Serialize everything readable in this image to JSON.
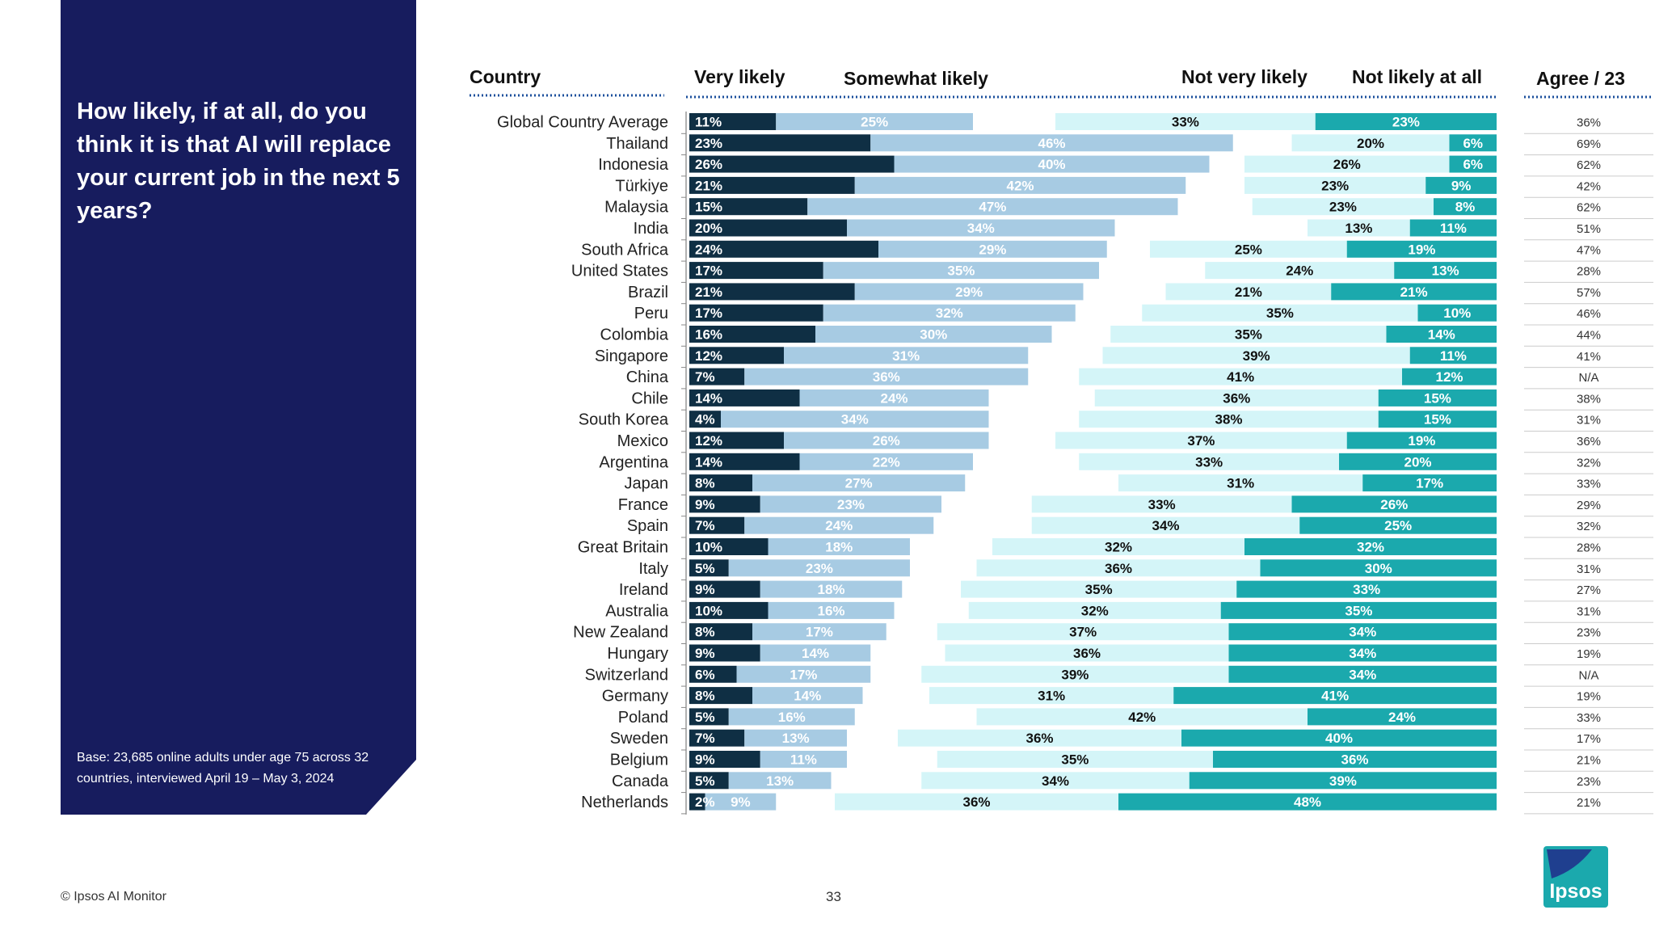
{
  "question": "How likely, if at all, do you think it is that AI will replace your current job in the next 5 years?",
  "base_note": "Base: 23,685 online adults under age 75 across 32 countries, interviewed April 19 – May 3, 2024",
  "footer": "© Ipsos AI Monitor",
  "page_number": "33",
  "logo_text": "Ipsos",
  "colors": {
    "panel": "#171c5e",
    "very_likely": "#0f2f44",
    "somewhat_likely": "#a7cbe3",
    "not_very_likely": "#d4f5f8",
    "not_likely_at_all": "#1ba9ad"
  },
  "chart_data": {
    "type": "bar",
    "subtype": "diverging-stacked-horizontal",
    "column_headers": {
      "country": "Country",
      "very_likely": "Very likely",
      "somewhat_likely": "Somewhat likely",
      "not_very_likely": "Not very likely",
      "not_likely_at_all": "Not likely at all",
      "agree23": "Agree / 23"
    },
    "unit": "%",
    "rows": [
      {
        "country": "Global Country Average",
        "very_likely": 11,
        "somewhat_likely": 25,
        "not_very_likely": 33,
        "not_likely_at_all": 23,
        "agree23": "36%"
      },
      {
        "country": "Thailand",
        "very_likely": 23,
        "somewhat_likely": 46,
        "not_very_likely": 20,
        "not_likely_at_all": 6,
        "agree23": "69%"
      },
      {
        "country": "Indonesia",
        "very_likely": 26,
        "somewhat_likely": 40,
        "not_very_likely": 26,
        "not_likely_at_all": 6,
        "agree23": "62%"
      },
      {
        "country": "Türkiye",
        "very_likely": 21,
        "somewhat_likely": 42,
        "not_very_likely": 23,
        "not_likely_at_all": 9,
        "agree23": "42%"
      },
      {
        "country": "Malaysia",
        "very_likely": 15,
        "somewhat_likely": 47,
        "not_very_likely": 23,
        "not_likely_at_all": 8,
        "agree23": "62%"
      },
      {
        "country": "India",
        "very_likely": 20,
        "somewhat_likely": 34,
        "not_very_likely": 13,
        "not_likely_at_all": 11,
        "agree23": "51%"
      },
      {
        "country": "South Africa",
        "very_likely": 24,
        "somewhat_likely": 29,
        "not_very_likely": 25,
        "not_likely_at_all": 19,
        "agree23": "47%"
      },
      {
        "country": "United States",
        "very_likely": 17,
        "somewhat_likely": 35,
        "not_very_likely": 24,
        "not_likely_at_all": 13,
        "agree23": "28%"
      },
      {
        "country": "Brazil",
        "very_likely": 21,
        "somewhat_likely": 29,
        "not_very_likely": 21,
        "not_likely_at_all": 21,
        "agree23": "57%"
      },
      {
        "country": "Peru",
        "very_likely": 17,
        "somewhat_likely": 32,
        "not_very_likely": 35,
        "not_likely_at_all": 10,
        "agree23": "46%"
      },
      {
        "country": "Colombia",
        "very_likely": 16,
        "somewhat_likely": 30,
        "not_very_likely": 35,
        "not_likely_at_all": 14,
        "agree23": "44%"
      },
      {
        "country": "Singapore",
        "very_likely": 12,
        "somewhat_likely": 31,
        "not_very_likely": 39,
        "not_likely_at_all": 11,
        "agree23": "41%"
      },
      {
        "country": "China",
        "very_likely": 7,
        "somewhat_likely": 36,
        "not_very_likely": 41,
        "not_likely_at_all": 12,
        "agree23": "N/A"
      },
      {
        "country": "Chile",
        "very_likely": 14,
        "somewhat_likely": 24,
        "not_very_likely": 36,
        "not_likely_at_all": 15,
        "agree23": "38%"
      },
      {
        "country": "South Korea",
        "very_likely": 4,
        "somewhat_likely": 34,
        "not_very_likely": 38,
        "not_likely_at_all": 15,
        "agree23": "31%"
      },
      {
        "country": "Mexico",
        "very_likely": 12,
        "somewhat_likely": 26,
        "not_very_likely": 37,
        "not_likely_at_all": 19,
        "agree23": "36%"
      },
      {
        "country": "Argentina",
        "very_likely": 14,
        "somewhat_likely": 22,
        "not_very_likely": 33,
        "not_likely_at_all": 20,
        "agree23": "32%"
      },
      {
        "country": "Japan",
        "very_likely": 8,
        "somewhat_likely": 27,
        "not_very_likely": 31,
        "not_likely_at_all": 17,
        "agree23": "33%"
      },
      {
        "country": "France",
        "very_likely": 9,
        "somewhat_likely": 23,
        "not_very_likely": 33,
        "not_likely_at_all": 26,
        "agree23": "29%"
      },
      {
        "country": "Spain",
        "very_likely": 7,
        "somewhat_likely": 24,
        "not_very_likely": 34,
        "not_likely_at_all": 25,
        "agree23": "32%"
      },
      {
        "country": "Great Britain",
        "very_likely": 10,
        "somewhat_likely": 18,
        "not_very_likely": 32,
        "not_likely_at_all": 32,
        "agree23": "28%"
      },
      {
        "country": "Italy",
        "very_likely": 5,
        "somewhat_likely": 23,
        "not_very_likely": 36,
        "not_likely_at_all": 30,
        "agree23": "31%"
      },
      {
        "country": "Ireland",
        "very_likely": 9,
        "somewhat_likely": 18,
        "not_very_likely": 35,
        "not_likely_at_all": 33,
        "agree23": "27%"
      },
      {
        "country": "Australia",
        "very_likely": 10,
        "somewhat_likely": 16,
        "not_very_likely": 32,
        "not_likely_at_all": 35,
        "agree23": "31%"
      },
      {
        "country": "New Zealand",
        "very_likely": 8,
        "somewhat_likely": 17,
        "not_very_likely": 37,
        "not_likely_at_all": 34,
        "agree23": "23%"
      },
      {
        "country": "Hungary",
        "very_likely": 9,
        "somewhat_likely": 14,
        "not_very_likely": 36,
        "not_likely_at_all": 34,
        "agree23": "19%"
      },
      {
        "country": "Switzerland",
        "very_likely": 6,
        "somewhat_likely": 17,
        "not_very_likely": 39,
        "not_likely_at_all": 34,
        "agree23": "N/A"
      },
      {
        "country": "Germany",
        "very_likely": 8,
        "somewhat_likely": 14,
        "not_very_likely": 31,
        "not_likely_at_all": 41,
        "agree23": "19%"
      },
      {
        "country": "Poland",
        "very_likely": 5,
        "somewhat_likely": 16,
        "not_very_likely": 42,
        "not_likely_at_all": 24,
        "agree23": "33%"
      },
      {
        "country": "Sweden",
        "very_likely": 7,
        "somewhat_likely": 13,
        "not_very_likely": 36,
        "not_likely_at_all": 40,
        "agree23": "17%"
      },
      {
        "country": "Belgium",
        "very_likely": 9,
        "somewhat_likely": 11,
        "not_very_likely": 35,
        "not_likely_at_all": 36,
        "agree23": "21%"
      },
      {
        "country": "Canada",
        "very_likely": 5,
        "somewhat_likely": 13,
        "not_very_likely": 34,
        "not_likely_at_all": 39,
        "agree23": "23%"
      },
      {
        "country": "Netherlands",
        "very_likely": 2,
        "somewhat_likely": 9,
        "not_very_likely": 36,
        "not_likely_at_all": 48,
        "agree23": "21%"
      }
    ]
  }
}
